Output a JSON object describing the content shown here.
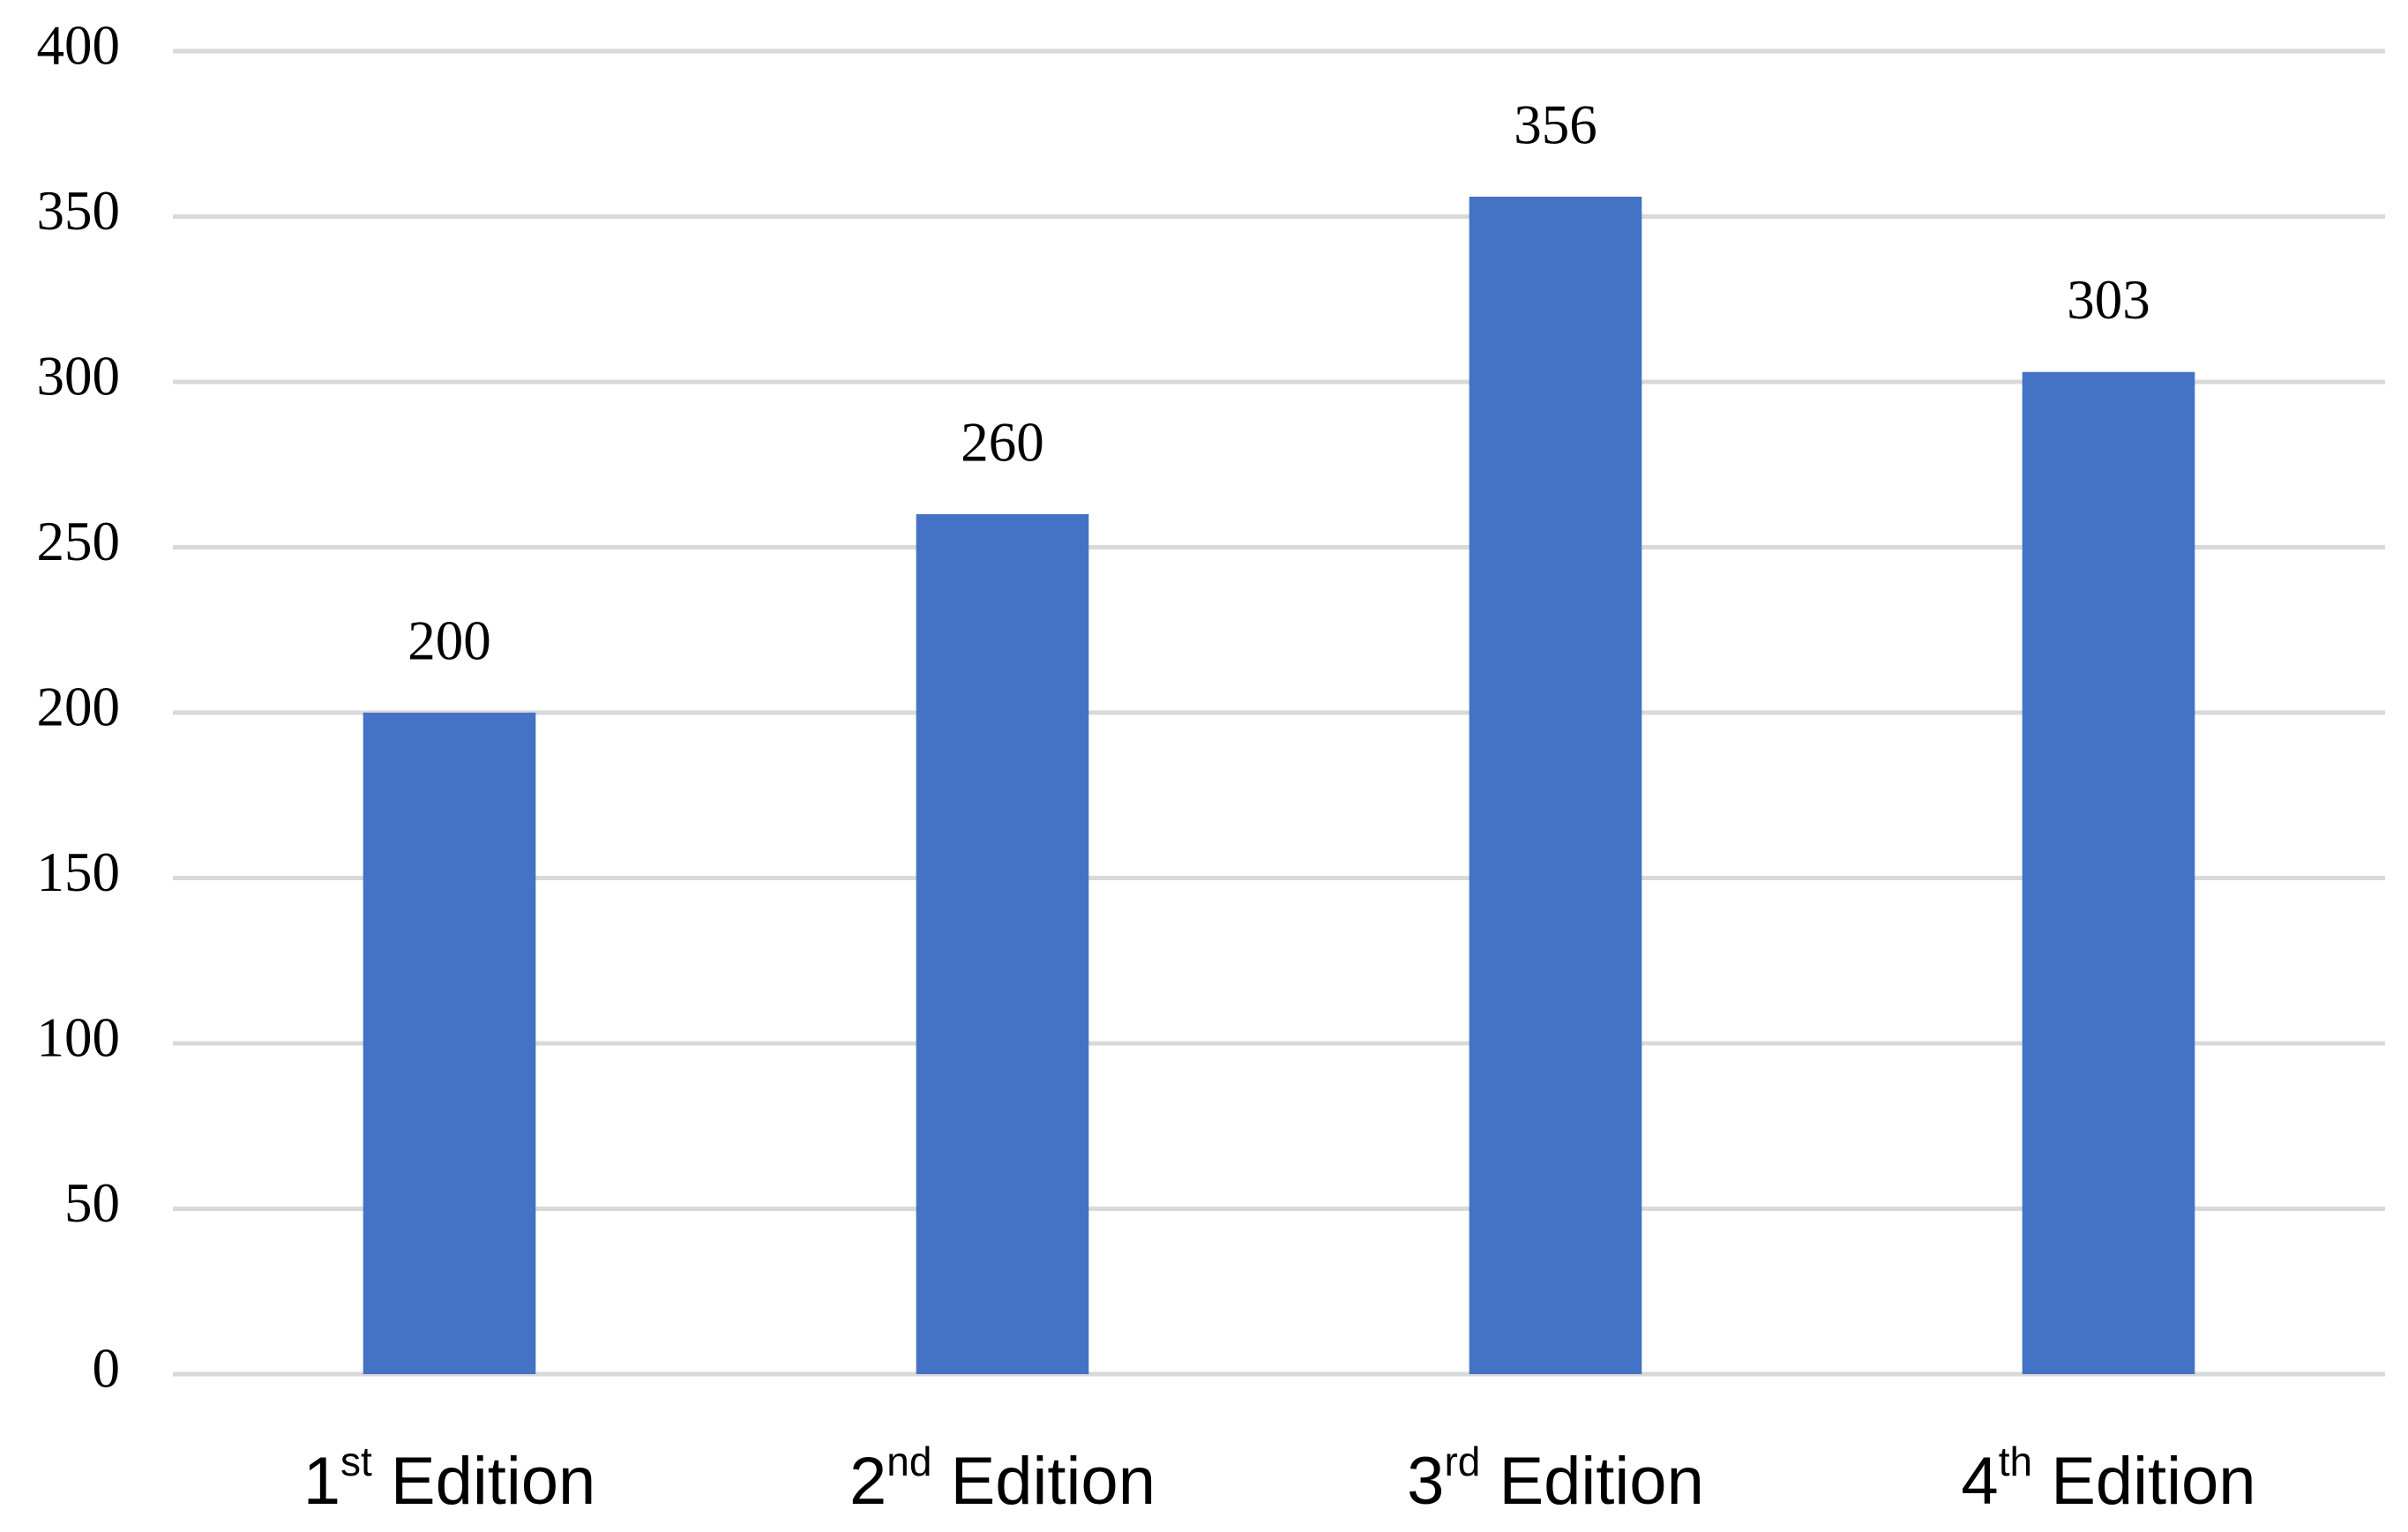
{
  "chart_data": {
    "type": "bar",
    "categories": [
      "1st Edition",
      "2nd Edition",
      "3rd Edition",
      "4th Edition"
    ],
    "values": [
      200,
      260,
      356,
      303
    ],
    "color": "#4472c4",
    "ylim": [
      0,
      400
    ],
    "yticks": [
      0,
      50,
      100,
      150,
      200,
      250,
      300,
      350,
      400
    ],
    "grid": true
  }
}
